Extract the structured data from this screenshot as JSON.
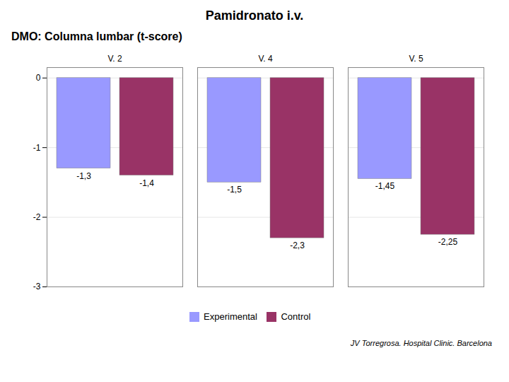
{
  "chart_data": {
    "type": "bar",
    "title": "Pamidronato i.v.",
    "subtitle": "DMO: Columna lumbar  (t-score)",
    "annotations": [
      "JV Torregrosa. Hospital Clinic. Barcelona"
    ],
    "categories": [
      "V. 2",
      "V. 4",
      "V. 5"
    ],
    "series": [
      {
        "name": "Experimental",
        "color": "#9999FF",
        "values": [
          -1.3,
          -1.5,
          -1.45
        ],
        "value_labels": [
          "-1,3",
          "-1,5",
          "-1,45"
        ]
      },
      {
        "name": "Control",
        "color": "#993366",
        "values": [
          -1.4,
          -2.3,
          -2.25
        ],
        "value_labels": [
          "-1,4",
          "-2,3",
          "-2,25"
        ]
      }
    ],
    "ylim": [
      -3,
      0.15
    ],
    "yticks": [
      0,
      -1,
      -2,
      -3
    ],
    "grid": true,
    "legend": "bottom",
    "data_labels": true
  }
}
